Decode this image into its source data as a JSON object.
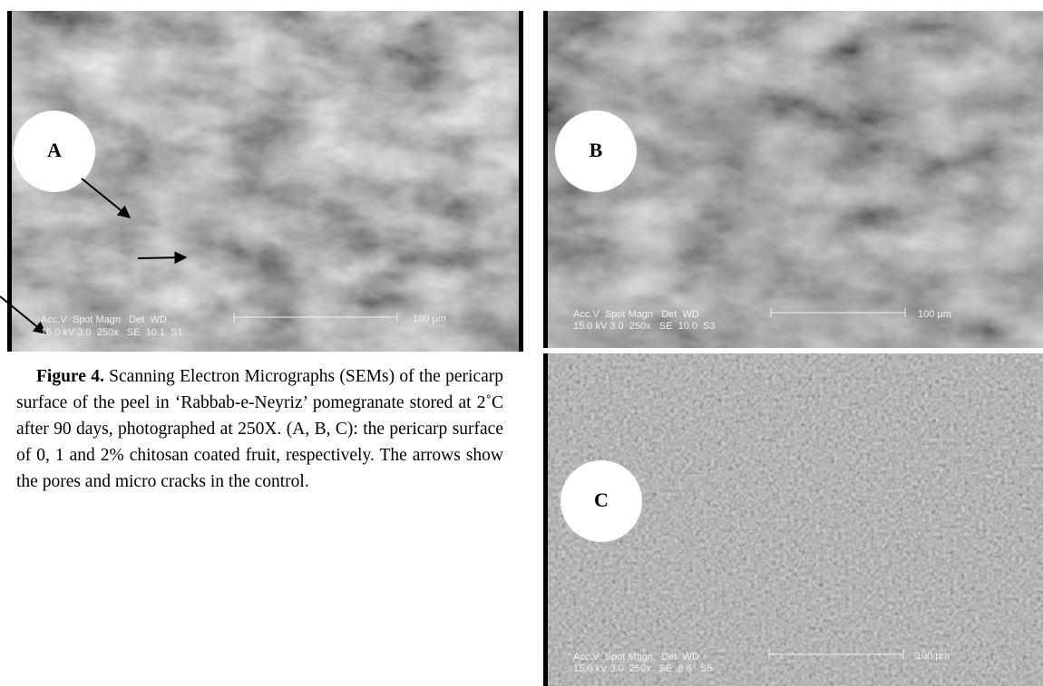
{
  "panels": [
    {
      "label": "A",
      "databar": {
        "header": "Acc.V  Spot Magn   Det  WD",
        "values": "15.0 kV 3.0  250x   SE  10.1  S1",
        "scale": "100 µm"
      }
    },
    {
      "label": "B",
      "databar": {
        "header": "Acc.V  Spot Magn   Det  WD",
        "values": "15.0 kV 3.0  250x   SE  10.0  S3",
        "scale": "100 µm"
      }
    },
    {
      "label": "C",
      "databar": {
        "header": "Acc.V  Spot Magn   Det  WD",
        "values": "15.0 kV 3.0  250x   SE  8.6   S5",
        "scale": "100 µm"
      }
    }
  ],
  "caption": {
    "label": "Figure 4.",
    "text": " Scanning Electron Micrographs (SEMs) of the pericarp surface of the peel in ‘Rabbab-e-Neyriz’ pomegranate stored at 2˚C after 90 days, photographed at 250X. (A, B, C): the pericarp surface of 0, 1 and 2% chitosan coated fruit, respectively. The arrows show the pores and micro cracks in the control."
  }
}
